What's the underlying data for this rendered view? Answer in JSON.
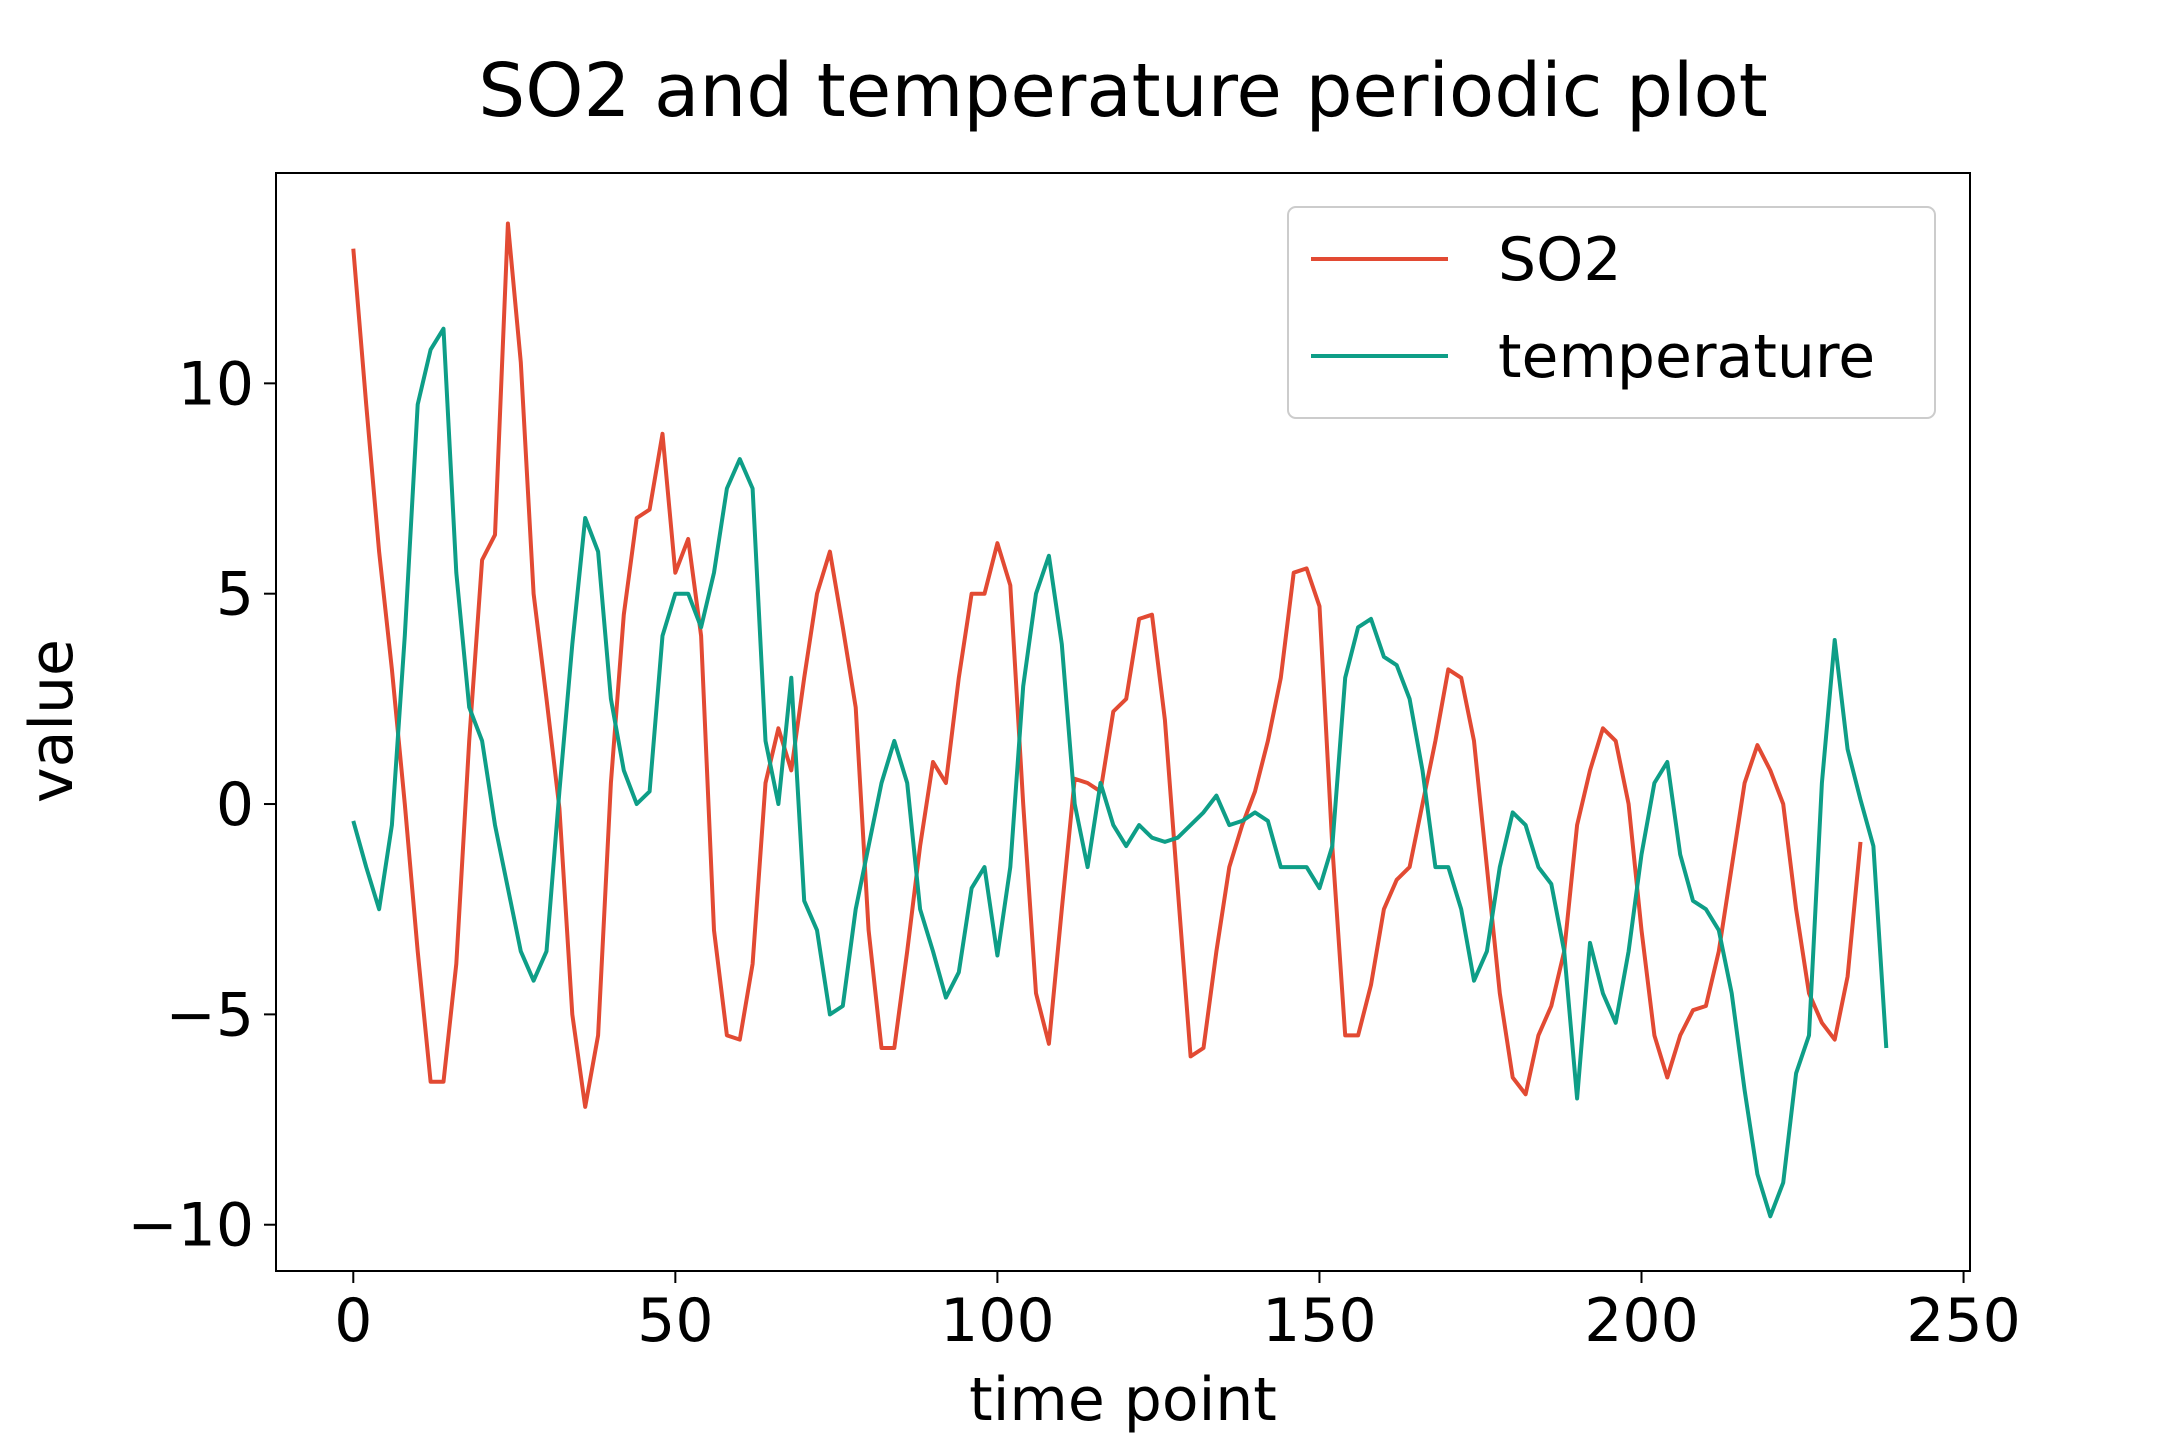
{
  "chart_data": {
    "type": "line",
    "title": "SO2 and temperature periodic plot",
    "xlabel": "time point",
    "ylabel": "value",
    "x": [
      0,
      2,
      4,
      6,
      8,
      10,
      12,
      14,
      16,
      18,
      20,
      22,
      24,
      26,
      28,
      30,
      32,
      34,
      36,
      38,
      40,
      42,
      44,
      46,
      48,
      50,
      52,
      54,
      56,
      58,
      60,
      62,
      64,
      66,
      68,
      70,
      72,
      74,
      76,
      78,
      80,
      82,
      84,
      86,
      88,
      90,
      92,
      94,
      96,
      98,
      100,
      102,
      104,
      106,
      108,
      110,
      112,
      114,
      116,
      118,
      120,
      122,
      124,
      126,
      128,
      130,
      132,
      134,
      136,
      138,
      140,
      142,
      144,
      146,
      148,
      150,
      152,
      154,
      156,
      158,
      160,
      162,
      164,
      166,
      168,
      170,
      172,
      174,
      176,
      178,
      180,
      182,
      184,
      186,
      188,
      190,
      192,
      194,
      196,
      198,
      200,
      202,
      204,
      206,
      208,
      210,
      212,
      214,
      216,
      218,
      220,
      222,
      224,
      226,
      228,
      230,
      232,
      234,
      236,
      238
    ],
    "series": [
      {
        "name": "SO2",
        "color": "#e24a33",
        "values": [
          13.2,
          9.5,
          6.0,
          3.2,
          0,
          -3.5,
          -6.6,
          -6.6,
          -3.8,
          1.5,
          5.8,
          6.4,
          13.8,
          10.5,
          5,
          2.5,
          -0.1,
          -5,
          -7.2,
          -5.5,
          0.5,
          4.5,
          6.8,
          7,
          8.8,
          5.5,
          6.3,
          4,
          -3,
          -5.5,
          -5.6,
          -3.8,
          0.5,
          1.8,
          0.8,
          3,
          5,
          6,
          4.2,
          2.3,
          -3,
          -5.8,
          -5.8,
          -3.5,
          -1,
          1,
          0.5,
          3,
          5,
          5,
          6.2,
          5.2,
          0,
          -4.5,
          -5.7,
          -2.5,
          0.6,
          0.5,
          0.3,
          2.2,
          2.5,
          4.4,
          4.5,
          2,
          -2,
          -6,
          -5.8,
          -3.5,
          -1.5,
          -0.5,
          0.3,
          1.5,
          3,
          5.5,
          5.6,
          4.7,
          -1,
          -5.5,
          -5.5,
          -4.3,
          -2.5,
          -1.8,
          -1.5,
          0,
          1.5,
          3.2,
          3,
          1.5,
          -1.5,
          -4.5,
          -6.5,
          -6.9,
          -5.5,
          -4.8,
          -3.5,
          -0.5,
          0.8,
          1.8,
          1.5,
          0,
          -3,
          -5.5,
          -6.5,
          -5.5,
          -4.9,
          -4.8,
          -3.5,
          -1.5,
          0.5,
          1.4,
          0.8,
          0,
          -2.5,
          -4.5,
          -5.2,
          -5.6,
          -4.1,
          -0.9,
          null,
          null
        ]
      },
      {
        "name": "temperature",
        "color": "#0e9e87",
        "values": [
          -0.4,
          -1.5,
          -2.5,
          -0.5,
          4,
          9.5,
          10.8,
          11.3,
          5.5,
          2.3,
          1.5,
          -0.5,
          -2,
          -3.5,
          -4.2,
          -3.5,
          0.3,
          3.8,
          6.8,
          6,
          2.5,
          0.8,
          0,
          0.3,
          4,
          5,
          5,
          4.2,
          5.5,
          7.5,
          8.2,
          7.5,
          1.5,
          0,
          3,
          -2.3,
          -3,
          -5,
          -4.8,
          -2.5,
          -1,
          0.5,
          1.5,
          0.5,
          -2.5,
          -3.5,
          -4.6,
          -4,
          -2,
          -1.5,
          -3.6,
          -1.5,
          2.8,
          5,
          5.9,
          3.8,
          0,
          -1.5,
          0.5,
          -0.5,
          -1,
          -0.5,
          -0.8,
          -0.9,
          -0.8,
          -0.5,
          -0.2,
          0.2,
          -0.5,
          -0.4,
          -0.2,
          -0.4,
          -1.5,
          -1.5,
          -1.5,
          -2,
          -1,
          3,
          4.2,
          4.4,
          3.5,
          3.3,
          2.5,
          0.8,
          -1.5,
          -1.5,
          -2.5,
          -4.2,
          -3.5,
          -1.5,
          -0.2,
          -0.5,
          -1.5,
          -1.9,
          -3.5,
          -7,
          -3.3,
          -4.5,
          -5.2,
          -3.5,
          -1.2,
          0.5,
          1,
          -1.2,
          -2.3,
          -2.5,
          -3,
          -4.5,
          -6.8,
          -8.8,
          -9.8,
          -9.0,
          -6.4,
          -5.5,
          0.5,
          3.9,
          1.3,
          0.1,
          -1,
          -5.8
        ]
      }
    ],
    "xlim": [
      -12,
      251
    ],
    "ylim": [
      -11.1,
      15.0
    ],
    "xticks": [
      0,
      50,
      100,
      150,
      200,
      250
    ],
    "yticks": [
      {
        "value": -10,
        "label": "−10"
      },
      {
        "value": -5,
        "label": "−5"
      },
      0,
      5,
      10
    ],
    "legend": "upper right",
    "grid": false
  }
}
